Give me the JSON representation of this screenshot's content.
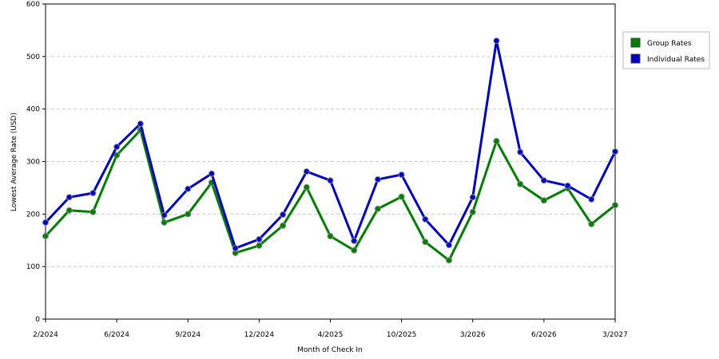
{
  "chart_data": {
    "type": "line",
    "x_label": "Month of Check In",
    "y_label": "Lowest Average Rate (USD)",
    "categories": [
      "2/2024",
      null,
      null,
      "6/2024",
      null,
      null,
      "9/2024",
      null,
      null,
      "12/2024",
      null,
      null,
      "4/2025",
      null,
      null,
      "10/2025",
      null,
      null,
      "3/2026",
      null,
      null,
      "6/2026",
      null,
      null,
      "3/2027"
    ],
    "series": [
      {
        "name": "Group Rates",
        "color": "#008000",
        "values": [
          158,
          207,
          204,
          312,
          360,
          184,
          200,
          260,
          126,
          140,
          178,
          251,
          158,
          131,
          210,
          233,
          147,
          112,
          204,
          339,
          257,
          226,
          249,
          181,
          217
        ]
      },
      {
        "name": "Individual Rates",
        "color": "#0000cc",
        "values": [
          184,
          232,
          240,
          328,
          372,
          198,
          248,
          277,
          135,
          152,
          199,
          281,
          264,
          149,
          266,
          275,
          190,
          141,
          232,
          530,
          318,
          264,
          254,
          228,
          319
        ]
      }
    ],
    "ylim": [
      0,
      600
    ],
    "yticks": [
      0,
      100,
      200,
      300,
      400,
      500,
      600
    ],
    "grid": true,
    "legend": "right"
  }
}
